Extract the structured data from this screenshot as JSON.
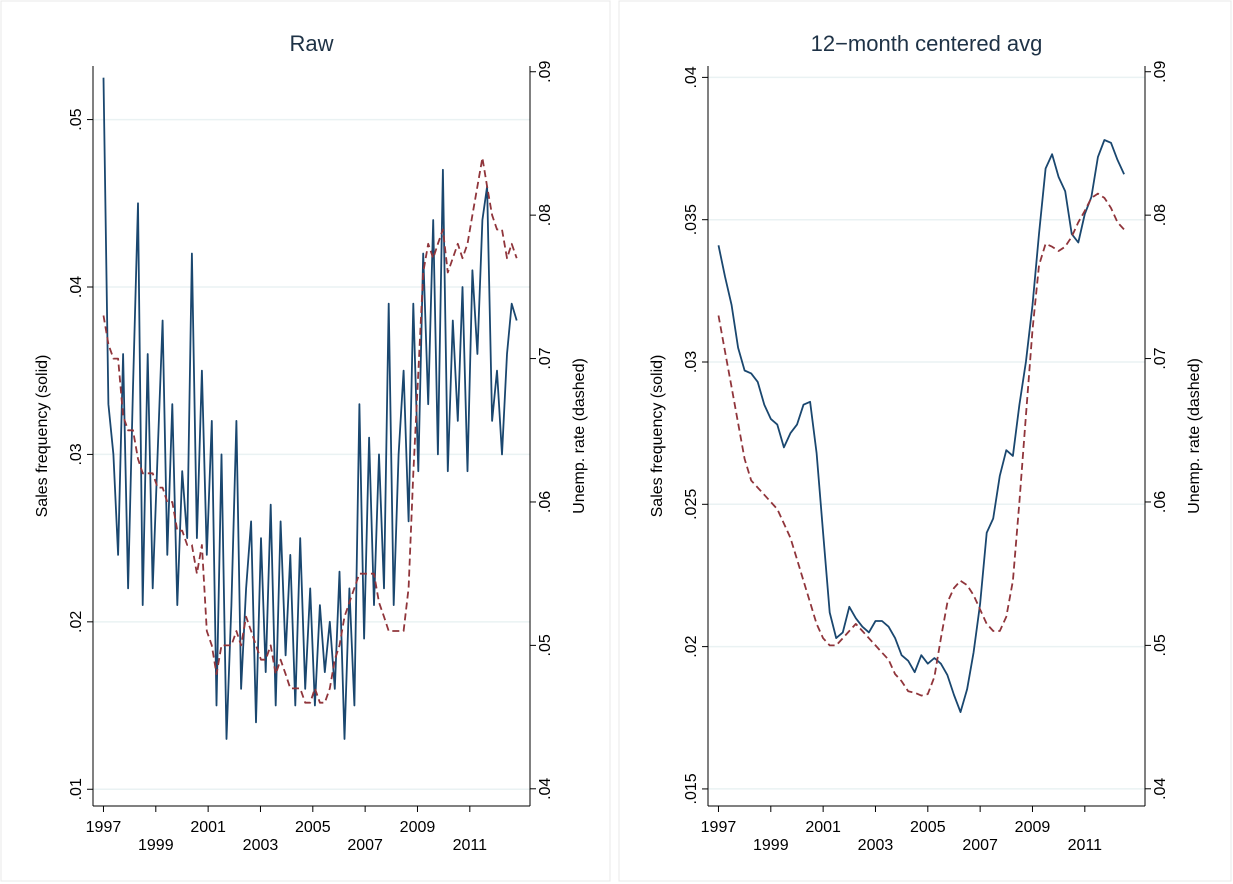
{
  "chart_data": [
    {
      "type": "line",
      "title": "Raw",
      "y_label": "Sales frequency (solid)",
      "y2_label": "Unemp. rate (dashed)",
      "grid": true,
      "xlim": [
        1996.6,
        2013.3
      ],
      "xticks": [
        1997,
        1999,
        2001,
        2003,
        2005,
        2007,
        2009,
        2011
      ],
      "ylim": [
        0.009,
        0.0532
      ],
      "yticks": [
        {
          "value": 0.01,
          "label": ".01"
        },
        {
          "value": 0.02,
          "label": ".02"
        },
        {
          "value": 0.03,
          "label": ".03"
        },
        {
          "value": 0.04,
          "label": ".04"
        },
        {
          "value": 0.05,
          "label": ".05"
        }
      ],
      "y2lim": [
        0.0388,
        0.0904
      ],
      "y2ticks": [
        {
          "value": 0.04,
          "label": ".04"
        },
        {
          "value": 0.05,
          "label": ".05"
        },
        {
          "value": 0.06,
          "label": ".06"
        },
        {
          "value": 0.07,
          "label": ".07"
        },
        {
          "value": 0.08,
          "label": ".08"
        },
        {
          "value": 0.09,
          "label": ".09"
        }
      ],
      "x": [
        1997.0,
        1997.19,
        1997.38,
        1997.56,
        1997.75,
        1997.94,
        1998.13,
        1998.32,
        1998.5,
        1998.69,
        1998.88,
        1999.07,
        1999.26,
        1999.44,
        1999.63,
        1999.82,
        2000.01,
        2000.2,
        2000.38,
        2000.57,
        2000.76,
        2000.95,
        2001.14,
        2001.32,
        2001.51,
        2001.7,
        2001.89,
        2002.08,
        2002.26,
        2002.45,
        2002.64,
        2002.83,
        2003.02,
        2003.2,
        2003.39,
        2003.58,
        2003.77,
        2003.96,
        2004.14,
        2004.33,
        2004.52,
        2004.71,
        2004.9,
        2005.08,
        2005.27,
        2005.46,
        2005.65,
        2005.84,
        2006.02,
        2006.21,
        2006.4,
        2006.59,
        2006.78,
        2006.96,
        2007.15,
        2007.34,
        2007.53,
        2007.72,
        2007.9,
        2008.09,
        2008.28,
        2008.47,
        2008.66,
        2008.84,
        2009.03,
        2009.22,
        2009.41,
        2009.6,
        2009.78,
        2009.97,
        2010.16,
        2010.35,
        2010.54,
        2010.72,
        2010.91,
        2011.1,
        2011.29,
        2011.48,
        2011.66,
        2011.85,
        2012.04,
        2012.23,
        2012.42,
        2012.6,
        2012.79
      ],
      "series": [
        {
          "color": "#1a476f",
          "style": "solid",
          "values": [
            0.0525,
            0.033,
            0.03,
            0.024,
            0.036,
            0.022,
            0.034,
            0.045,
            0.021,
            0.036,
            0.022,
            0.03,
            0.038,
            0.024,
            0.033,
            0.021,
            0.029,
            0.025,
            0.042,
            0.025,
            0.035,
            0.024,
            0.032,
            0.015,
            0.03,
            0.013,
            0.021,
            0.032,
            0.016,
            0.022,
            0.026,
            0.014,
            0.025,
            0.017,
            0.027,
            0.015,
            0.026,
            0.018,
            0.024,
            0.015,
            0.025,
            0.016,
            0.022,
            0.015,
            0.021,
            0.017,
            0.02,
            0.016,
            0.023,
            0.013,
            0.022,
            0.015,
            0.033,
            0.019,
            0.031,
            0.021,
            0.03,
            0.022,
            0.039,
            0.021,
            0.03,
            0.035,
            0.026,
            0.039,
            0.029,
            0.042,
            0.033,
            0.044,
            0.03,
            0.047,
            0.029,
            0.038,
            0.032,
            0.04,
            0.029,
            0.041,
            0.036,
            0.044,
            0.046,
            0.032,
            0.035,
            0.03,
            0.036,
            0.039,
            0.038
          ]
        },
        {
          "color": "#90353b",
          "style": "dashed",
          "axis": "y2",
          "values": [
            0.073,
            0.071,
            0.07,
            0.07,
            0.066,
            0.065,
            0.065,
            0.063,
            0.062,
            0.062,
            0.062,
            0.061,
            0.061,
            0.06,
            0.06,
            0.058,
            0.058,
            0.057,
            0.057,
            0.055,
            0.057,
            0.051,
            0.05,
            0.048,
            0.05,
            0.05,
            0.05,
            0.051,
            0.05,
            0.052,
            0.051,
            0.05,
            0.049,
            0.049,
            0.05,
            0.048,
            0.049,
            0.048,
            0.047,
            0.047,
            0.047,
            0.046,
            0.046,
            0.047,
            0.046,
            0.046,
            0.047,
            0.049,
            0.05,
            0.052,
            0.053,
            0.054,
            0.055,
            0.055,
            0.055,
            0.055,
            0.053,
            0.052,
            0.051,
            0.051,
            0.051,
            0.051,
            0.054,
            0.062,
            0.069,
            0.076,
            0.078,
            0.077,
            0.078,
            0.079,
            0.076,
            0.077,
            0.078,
            0.077,
            0.078,
            0.08,
            0.082,
            0.084,
            0.082,
            0.08,
            0.079,
            0.079,
            0.077,
            0.078,
            0.077
          ]
        }
      ]
    },
    {
      "type": "line",
      "title": "12−month centered avg",
      "y_label": "Sales frequency (solid)",
      "y2_label": "Unemp. rate (dashed)",
      "grid": true,
      "xlim": [
        1996.6,
        2013.3
      ],
      "xticks": [
        1997,
        1999,
        2001,
        2003,
        2005,
        2007,
        2009,
        2011
      ],
      "ylim": [
        0.0144,
        0.0404
      ],
      "yticks": [
        {
          "value": 0.015,
          "label": ".015"
        },
        {
          "value": 0.02,
          "label": ".02"
        },
        {
          "value": 0.025,
          "label": ".025"
        },
        {
          "value": 0.03,
          "label": ".03"
        },
        {
          "value": 0.035,
          "label": ".035"
        },
        {
          "value": 0.04,
          "label": ".04"
        }
      ],
      "y2lim": [
        0.0388,
        0.0904
      ],
      "y2ticks": [
        {
          "value": 0.04,
          "label": ".04"
        },
        {
          "value": 0.05,
          "label": ".05"
        },
        {
          "value": 0.06,
          "label": ".06"
        },
        {
          "value": 0.07,
          "label": ".07"
        },
        {
          "value": 0.08,
          "label": ".08"
        },
        {
          "value": 0.09,
          "label": ".09"
        }
      ],
      "x": [
        1997.0,
        1997.25,
        1997.5,
        1997.75,
        1998.0,
        1998.25,
        1998.5,
        1998.75,
        1999.0,
        1999.25,
        1999.5,
        1999.75,
        2000.0,
        2000.25,
        2000.5,
        2000.75,
        2001.0,
        2001.25,
        2001.5,
        2001.75,
        2002.0,
        2002.25,
        2002.5,
        2002.75,
        2003.0,
        2003.25,
        2003.5,
        2003.75,
        2004.0,
        2004.25,
        2004.5,
        2004.75,
        2005.0,
        2005.25,
        2005.5,
        2005.75,
        2006.0,
        2006.25,
        2006.5,
        2006.75,
        2007.0,
        2007.25,
        2007.5,
        2007.75,
        2008.0,
        2008.25,
        2008.5,
        2008.75,
        2009.0,
        2009.25,
        2009.5,
        2009.75,
        2010.0,
        2010.25,
        2010.5,
        2010.75,
        2011.0,
        2011.25,
        2011.5,
        2011.75,
        2012.0,
        2012.25,
        2012.5
      ],
      "series": [
        {
          "color": "#1a476f",
          "style": "solid",
          "values": [
            0.0341,
            0.033,
            0.032,
            0.0305,
            0.0297,
            0.0296,
            0.0293,
            0.0285,
            0.028,
            0.0278,
            0.027,
            0.0275,
            0.0278,
            0.0285,
            0.0286,
            0.0268,
            0.024,
            0.0212,
            0.0203,
            0.0205,
            0.0214,
            0.021,
            0.0207,
            0.0205,
            0.0209,
            0.0209,
            0.0207,
            0.0203,
            0.0197,
            0.0195,
            0.0191,
            0.0197,
            0.0194,
            0.0196,
            0.0194,
            0.019,
            0.0183,
            0.0177,
            0.0185,
            0.0198,
            0.0215,
            0.024,
            0.0245,
            0.026,
            0.0269,
            0.0267,
            0.0285,
            0.03,
            0.032,
            0.0345,
            0.0368,
            0.0373,
            0.0365,
            0.036,
            0.0345,
            0.0342,
            0.0352,
            0.0358,
            0.0372,
            0.0378,
            0.0377,
            0.0371,
            0.0366
          ]
        },
        {
          "color": "#90353b",
          "style": "dashed",
          "axis": "y2",
          "values": [
            0.073,
            0.0705,
            0.068,
            0.0655,
            0.063,
            0.0615,
            0.061,
            0.0605,
            0.06,
            0.0595,
            0.0585,
            0.0575,
            0.056,
            0.0545,
            0.053,
            0.0515,
            0.0505,
            0.05,
            0.05,
            0.0505,
            0.051,
            0.0515,
            0.051,
            0.0505,
            0.05,
            0.0495,
            0.049,
            0.048,
            0.0475,
            0.0468,
            0.0467,
            0.0465,
            0.0466,
            0.0478,
            0.0505,
            0.053,
            0.054,
            0.0545,
            0.0542,
            0.0535,
            0.0525,
            0.0515,
            0.051,
            0.051,
            0.052,
            0.0545,
            0.06,
            0.066,
            0.072,
            0.0765,
            0.078,
            0.0778,
            0.0775,
            0.0778,
            0.0785,
            0.0795,
            0.0803,
            0.0812,
            0.0815,
            0.0812,
            0.0805,
            0.0795,
            0.079
          ]
        }
      ]
    }
  ]
}
